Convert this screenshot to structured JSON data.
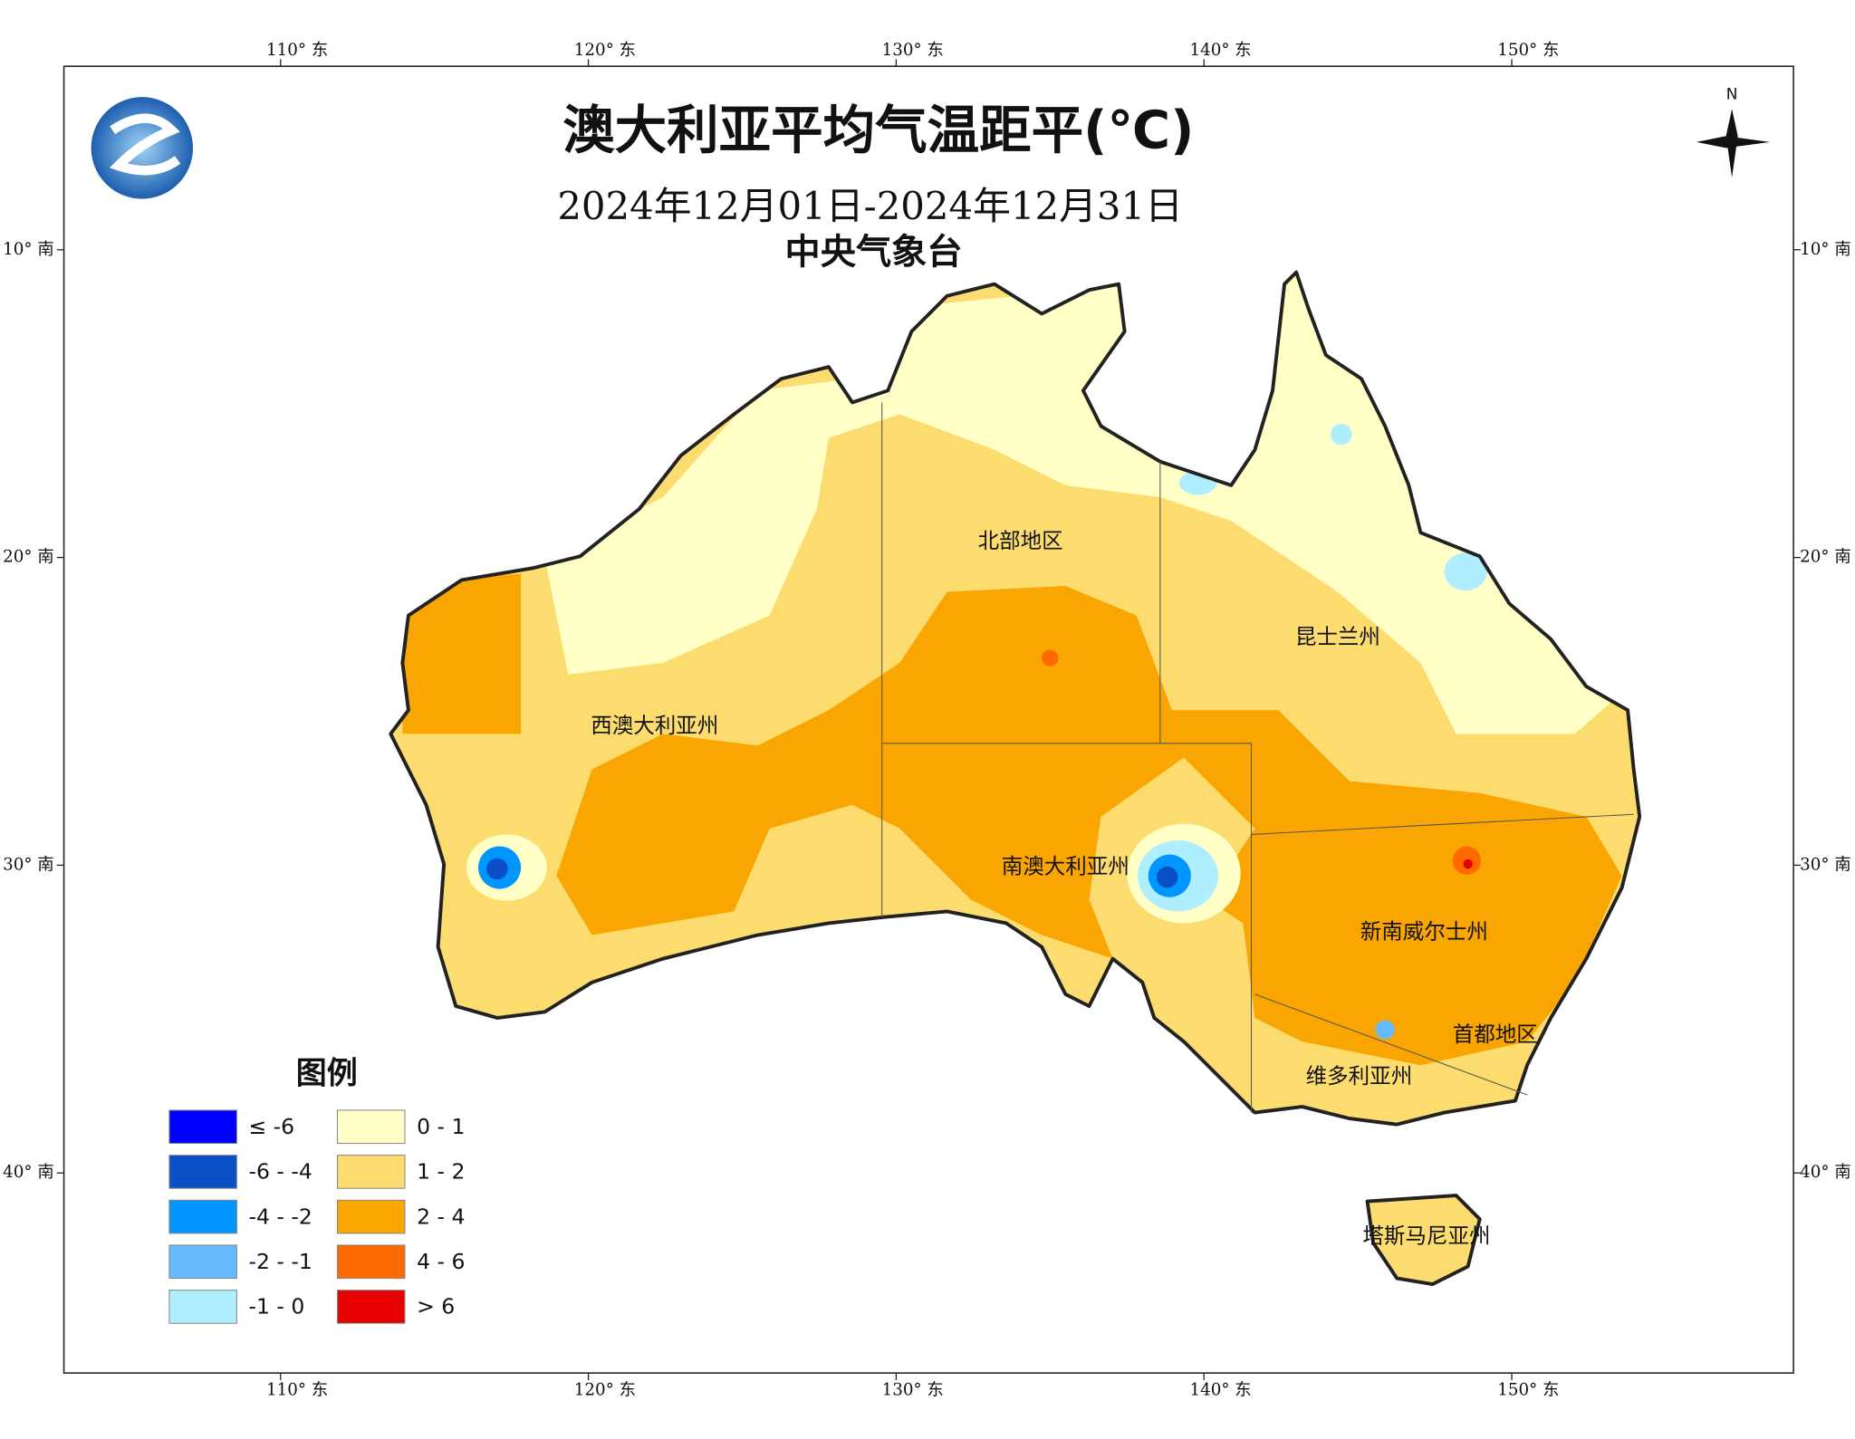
{
  "map": {
    "title": "澳大利亚平均气温距平(℃)",
    "subtitle": "2024年12月01日-2024年12月31日",
    "organization": "中央气象台",
    "north_label": "N",
    "lon_labels": [
      "110° 东",
      "120° 东",
      "130° 东",
      "140° 东",
      "150° 东"
    ],
    "lat_labels": [
      "10° 南",
      "20° 南",
      "30° 南",
      "40° 南"
    ],
    "regions": [
      "北部地区",
      "昆士兰州",
      "西澳大利亚州",
      "南澳大利亚州",
      "新南威尔士州",
      "首都地区",
      "维多利亚州",
      "塔斯马尼亚州"
    ],
    "legend": {
      "title": "图例",
      "items": [
        {
          "label": "≤ -6",
          "color": "#0000ff"
        },
        {
          "label": "-6 - -4",
          "color": "#0a4fc5"
        },
        {
          "label": "-4 - -2",
          "color": "#0096ff"
        },
        {
          "label": "-2 - -1",
          "color": "#66bbff"
        },
        {
          "label": "-1 - 0",
          "color": "#aeeeff"
        },
        {
          "label": "0 - 1",
          "color": "#ffffc6"
        },
        {
          "label": "1 - 2",
          "color": "#fddc6f"
        },
        {
          "label": "2 - 4",
          "color": "#f9a602"
        },
        {
          "label": "4 - 6",
          "color": "#ff6a00"
        },
        {
          "label": "> 6",
          "color": "#e60000"
        }
      ]
    }
  }
}
